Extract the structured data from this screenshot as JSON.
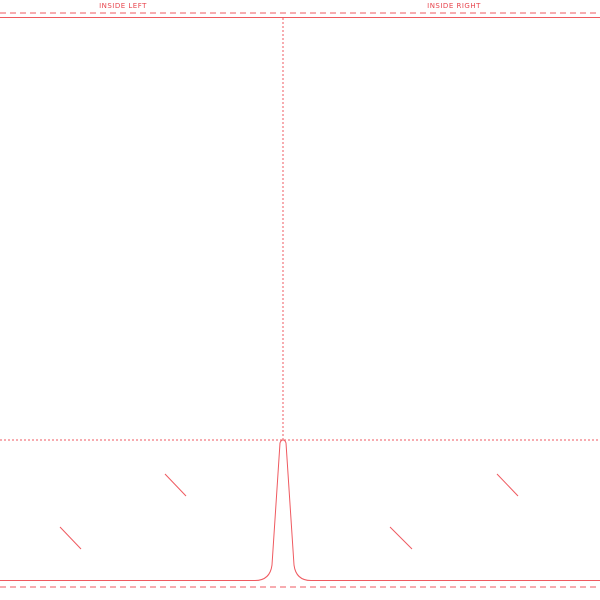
{
  "labels": {
    "left": "INSIDE LEFT",
    "right": "INSIDE RIGHT"
  }
}
